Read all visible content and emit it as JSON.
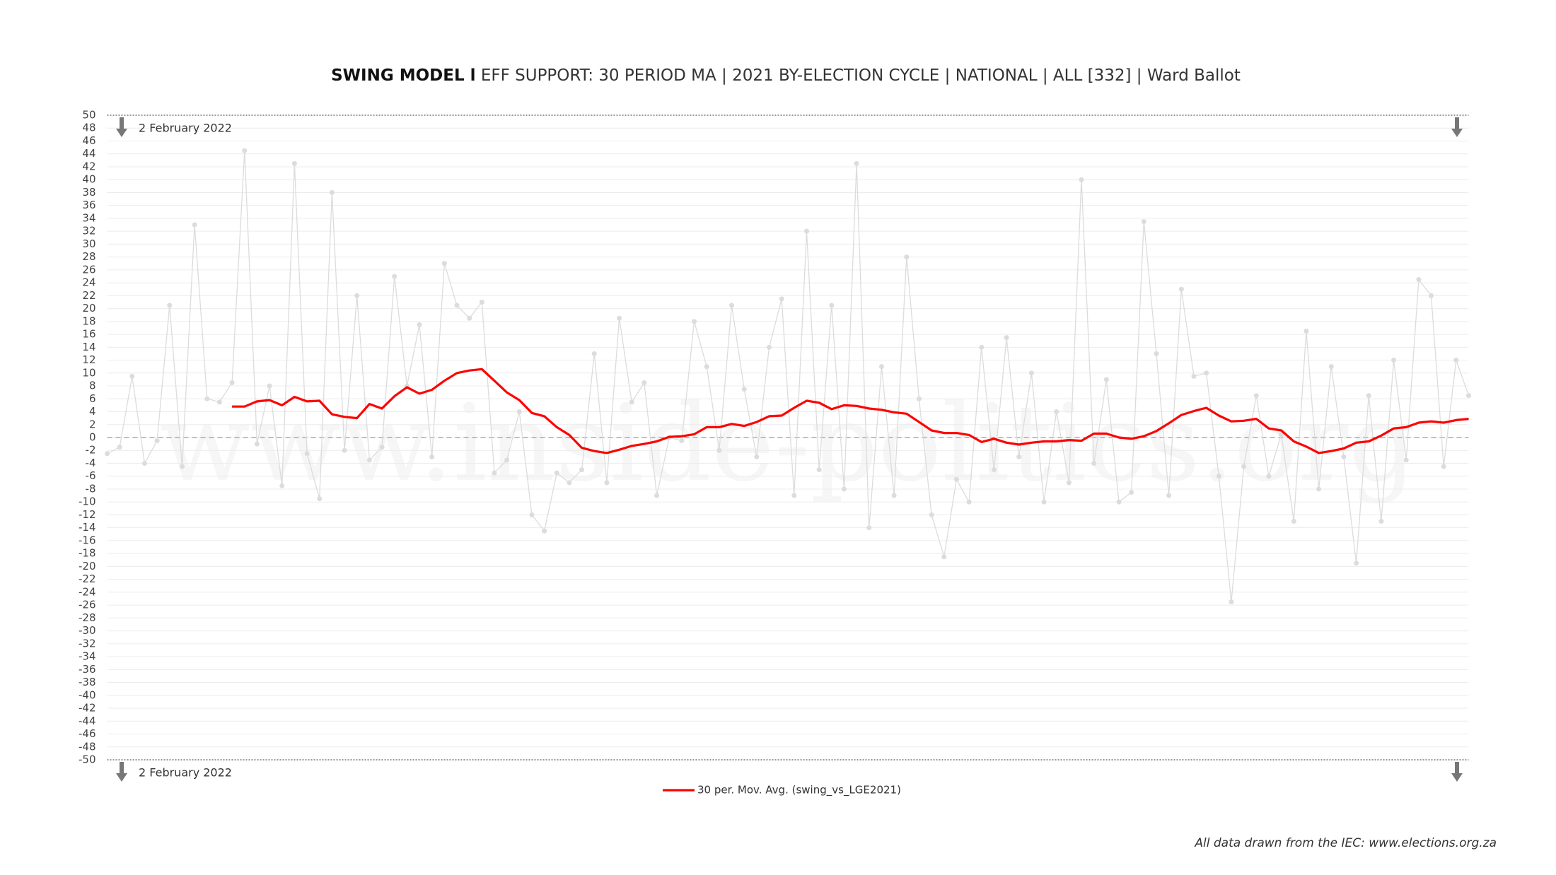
{
  "chart_data": {
    "type": "line",
    "title": "SWING MODEL l",
    "subtitle": "EFF SUPPORT: 30 PERIOD MA | 2021 BY-ELECTION CYCLE | NATIONAL | ALL [332] | Ward Ballot",
    "annotations": [
      "2 February 2022",
      "2 February 2022"
    ],
    "watermark": "www.inside-politics.org",
    "source": "All data drawn from the IEC: www.elections.org.za",
    "grid": true,
    "ylim": [
      -50,
      50
    ],
    "yticks": [
      50,
      48,
      46,
      44,
      42,
      40,
      38,
      36,
      34,
      32,
      30,
      28,
      26,
      24,
      22,
      20,
      18,
      16,
      14,
      12,
      10,
      8,
      6,
      4,
      2,
      0,
      -2,
      -4,
      -6,
      -8,
      -10,
      -12,
      -14,
      -16,
      -18,
      -20,
      -22,
      -24,
      -26,
      -28,
      -30,
      -32,
      -34,
      -36,
      -38,
      -40,
      -42,
      -44,
      -46,
      -48,
      -50
    ],
    "series": [
      {
        "color": "#dcdcdc",
        "values": [
          -2.5,
          -1.5,
          9.5,
          -4,
          -0.5,
          20.5,
          -4.5,
          33,
          6,
          5.5,
          8.5,
          44.5,
          -1,
          8,
          -7.5,
          42.5,
          -2.5,
          -9.5,
          38,
          -2,
          22,
          -3.5,
          -1.5,
          25,
          8,
          17.5,
          -3,
          27,
          20.5,
          18.5,
          21,
          -5.5,
          -3.5,
          4,
          -12,
          -14.5,
          -5.5,
          -7,
          -5,
          13,
          -7,
          18.5,
          5.5,
          8.5,
          -9,
          0,
          -0.5,
          18,
          11,
          -2,
          20.5,
          7.5,
          -3,
          14,
          21.5,
          -9,
          32,
          -5,
          20.5,
          -8,
          42.5,
          -14,
          11,
          -9,
          28,
          6,
          -12,
          -18.5,
          -6.5,
          -10,
          14,
          -5,
          15.5,
          -3,
          10,
          -10,
          4,
          -7,
          40,
          -4,
          9,
          -10,
          -8.5,
          33.5,
          13,
          -9,
          23,
          9.5,
          10,
          -6,
          -25.5,
          -4.5,
          6.5,
          -6,
          0.5,
          -13,
          16.5,
          -8,
          11,
          -3,
          -19.5,
          6.5,
          -13,
          12,
          -3.5,
          24.5,
          22,
          -4.5,
          12,
          6.5
        ]
      },
      {
        "name": "30 per. Mov. Avg. (swing_vs_LGE2021)",
        "color": "#ff0000",
        "values": [
          null,
          null,
          null,
          null,
          null,
          null,
          null,
          null,
          null,
          null,
          4.8,
          4.8,
          5.6,
          5.8,
          5,
          6.3,
          5.6,
          5.7,
          3.6,
          3.2,
          3,
          5.2,
          4.5,
          6.4,
          7.8,
          6.8,
          7.4,
          8.8,
          10,
          10.4,
          10.6,
          8.8,
          7,
          5.8,
          3.8,
          3.3,
          1.6,
          0.4,
          -1.6,
          -2.1,
          -2.4,
          -1.9,
          -1.3,
          -1,
          -0.6,
          0.1,
          0.2,
          0.5,
          1.6,
          1.6,
          2.1,
          1.8,
          2.4,
          3.3,
          3.4,
          4.6,
          5.7,
          5.4,
          4.4,
          5,
          4.9,
          4.5,
          4.3,
          3.9,
          3.7,
          2.4,
          1.1,
          0.7,
          0.7,
          0.4,
          -0.7,
          -0.2,
          -0.8,
          -1.1,
          -0.8,
          -0.6,
          -0.6,
          -0.4,
          -0.5,
          0.6,
          0.6,
          0,
          -0.2,
          0.2,
          1,
          2.2,
          3.5,
          4.1,
          4.6,
          3.4,
          2.5,
          2.6,
          2.9,
          1.4,
          1.1,
          -0.6,
          -1.4,
          -2.4,
          -2.1,
          -1.7,
          -0.8,
          -0.6,
          0.3,
          1.4,
          1.6,
          2.3,
          2.5,
          2.3,
          2.7,
          2.9
        ]
      }
    ]
  }
}
